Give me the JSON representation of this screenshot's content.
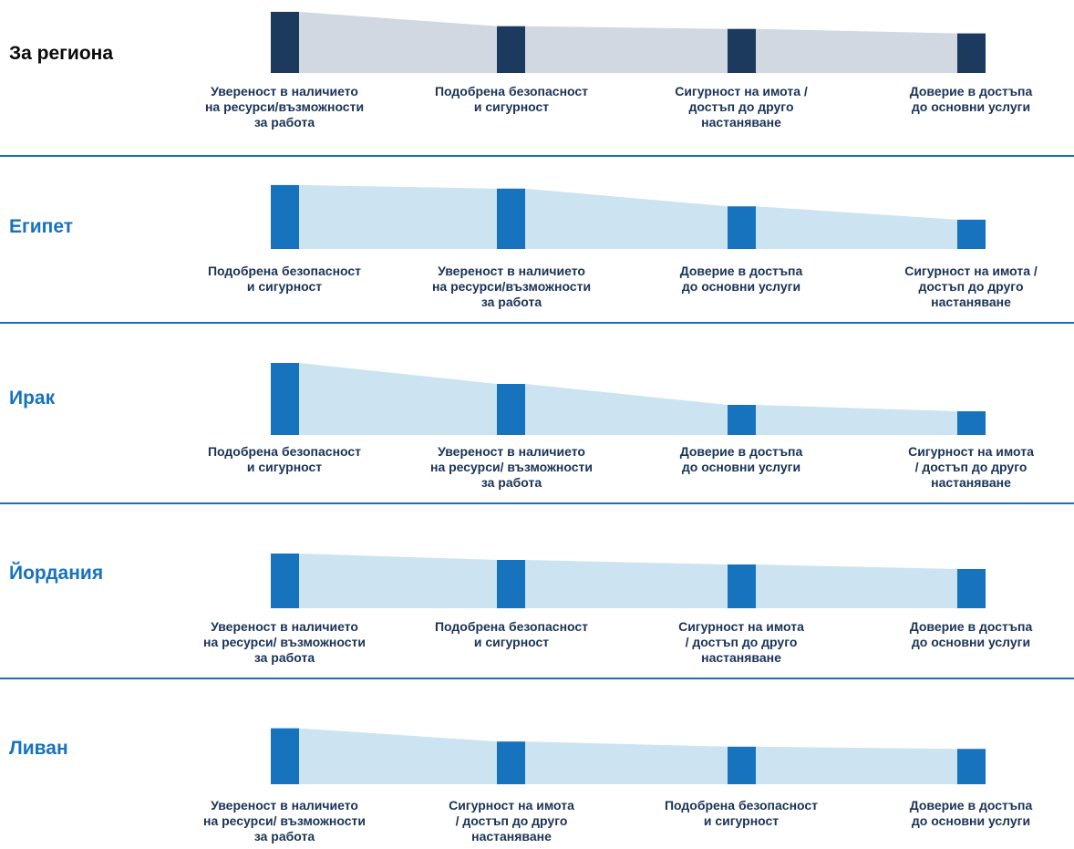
{
  "colors": {
    "region_bar": "#1b3a5e",
    "region_band": "#d1d8e1",
    "region_title": "#0a0a0a",
    "country_bar": "#1773bd",
    "country_band": "#cce3f1",
    "country_title": "#1773bd",
    "label_text": "#1a3357",
    "divider": "#1f6fb8"
  },
  "chart_data": [
    {
      "type": "bar",
      "title": "За региона",
      "categories": [
        "Увереност в наличието\nна ресурси/възможности\nза работа",
        "Подобрена безопасност\nи сигурност",
        "Сигурност на имота /\nдостъп до друго\nнастаняване",
        "Доверие в достъпа\nдо основни услуги"
      ],
      "values": [
        68,
        52,
        49,
        44
      ],
      "ylim": [
        0,
        70
      ]
    },
    {
      "type": "bar",
      "title": "Египет",
      "categories": [
        "Подобрена безопасност\nи сигурност",
        "Увереност в наличието\nна ресурси/възможности\nза работа",
        "Доверие в достъпа\nдо основни услуги",
        "Сигурност на имота /\nдостъп до друго\nнастаняване"
      ],
      "values": [
        72,
        68,
        48,
        33
      ],
      "ylim": [
        0,
        75
      ]
    },
    {
      "type": "bar",
      "title": "Ирак",
      "categories": [
        "Подобрена безопасност\nи сигурност",
        "Увереност в наличието\nна ресурси/ възможности\nза работа",
        "Доверие в достъпа\nдо основни услуги",
        "Сигурност на имота\n/ достъп до друго\nнастаняване"
      ],
      "values": [
        79,
        56,
        33,
        26
      ],
      "ylim": [
        0,
        80
      ]
    },
    {
      "type": "bar",
      "title": "Йордания",
      "categories": [
        "Увереност в наличието\nна ресурси/ възможности\nза работа",
        "Подобрена безопасност\nи сигурност",
        "Сигурност на имота\n/ достъп до друго\nнастаняване",
        "Доверие в достъпа\nдо основни услуги"
      ],
      "values": [
        60,
        53,
        48,
        43
      ],
      "ylim": [
        0,
        62
      ]
    },
    {
      "type": "bar",
      "title": "Ливан",
      "categories": [
        "Увереност в наличието\nна ресурси/ възможности\nза работа",
        "Сигурност на имота\n/ достъп до друго\nнастаняване",
        "Подобрена безопасност\nи сигурност",
        "Доверие в достъпа\nдо основни услуги"
      ],
      "values": [
        76,
        58,
        51,
        48
      ],
      "ylim": [
        0,
        78
      ]
    }
  ]
}
